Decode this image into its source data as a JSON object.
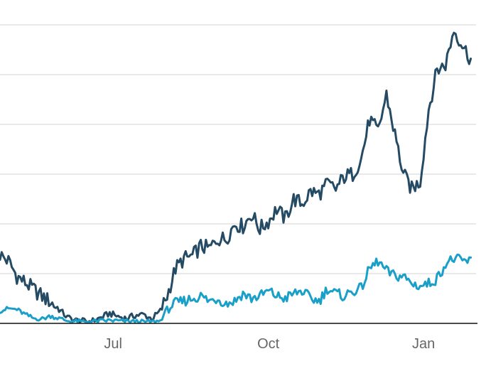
{
  "chart_data": {
    "type": "line",
    "x_axis": {
      "kind": "date",
      "range": [
        "2020-04-25",
        "2021-02-07"
      ],
      "ticks": [
        {
          "date": "2020-07-01",
          "label": "Jul"
        },
        {
          "date": "2020-10-01",
          "label": "Oct"
        },
        {
          "date": "2021-01-01",
          "label": "Jan"
        }
      ]
    },
    "y_axis": {
      "range": [
        0,
        60
      ],
      "gridlines": [
        10,
        20,
        30,
        40,
        50,
        60
      ],
      "tick_labels": []
    },
    "grid": true,
    "legend": "none",
    "series": [
      {
        "color": "#244b63",
        "points": [
          [
            "2020-04-25",
            13.8
          ],
          [
            "2020-04-30",
            12.5
          ],
          [
            "2020-05-05",
            9.5
          ],
          [
            "2020-05-10",
            8.2
          ],
          [
            "2020-05-15",
            6.8
          ],
          [
            "2020-05-20",
            5.4
          ],
          [
            "2020-05-25",
            4.3
          ],
          [
            "2020-05-30",
            2.8
          ],
          [
            "2020-06-04",
            1.2
          ],
          [
            "2020-06-09",
            0.6
          ],
          [
            "2020-06-14",
            0.4
          ],
          [
            "2020-06-19",
            0.5
          ],
          [
            "2020-06-24",
            1.2
          ],
          [
            "2020-06-29",
            2.0
          ],
          [
            "2020-07-04",
            1.4
          ],
          [
            "2020-07-09",
            1.0
          ],
          [
            "2020-07-14",
            1.6
          ],
          [
            "2020-07-19",
            1.8
          ],
          [
            "2020-07-24",
            0.9
          ],
          [
            "2020-07-29",
            2.5
          ],
          [
            "2020-08-02",
            5.5
          ],
          [
            "2020-08-07",
            11.0
          ],
          [
            "2020-08-12",
            13.0
          ],
          [
            "2020-08-17",
            13.5
          ],
          [
            "2020-08-22",
            15.5
          ],
          [
            "2020-08-27",
            15.0
          ],
          [
            "2020-09-01",
            17.0
          ],
          [
            "2020-09-06",
            17.0
          ],
          [
            "2020-09-11",
            20.0
          ],
          [
            "2020-09-16",
            19.5
          ],
          [
            "2020-09-21",
            22.0
          ],
          [
            "2020-09-26",
            19.0
          ],
          [
            "2020-10-01",
            20.5
          ],
          [
            "2020-10-06",
            23.0
          ],
          [
            "2020-10-11",
            21.0
          ],
          [
            "2020-10-16",
            25.0
          ],
          [
            "2020-10-21",
            24.0
          ],
          [
            "2020-10-26",
            26.5
          ],
          [
            "2020-10-31",
            26.0
          ],
          [
            "2020-11-05",
            28.0
          ],
          [
            "2020-11-10",
            27.0
          ],
          [
            "2020-11-15",
            29.5
          ],
          [
            "2020-11-20",
            30.0
          ],
          [
            "2020-11-25",
            33.0
          ],
          [
            "2020-11-30",
            41.0
          ],
          [
            "2020-12-05",
            38.5
          ],
          [
            "2020-12-10",
            46.0
          ],
          [
            "2020-12-15",
            38.0
          ],
          [
            "2020-12-20",
            30.0
          ],
          [
            "2020-12-25",
            27.0
          ],
          [
            "2020-12-30",
            28.5
          ],
          [
            "2021-01-04",
            43.0
          ],
          [
            "2021-01-09",
            51.0
          ],
          [
            "2021-01-14",
            52.0
          ],
          [
            "2021-01-19",
            59.0
          ],
          [
            "2021-01-24",
            56.0
          ],
          [
            "2021-01-29",
            53.0
          ]
        ]
      },
      {
        "color": "#1aa0c8",
        "points": [
          [
            "2020-04-25",
            2.5
          ],
          [
            "2020-04-30",
            3.0
          ],
          [
            "2020-05-05",
            2.8
          ],
          [
            "2020-05-10",
            1.8
          ],
          [
            "2020-05-15",
            1.0
          ],
          [
            "2020-05-20",
            0.9
          ],
          [
            "2020-05-25",
            1.5
          ],
          [
            "2020-05-30",
            1.0
          ],
          [
            "2020-06-04",
            0.5
          ],
          [
            "2020-06-09",
            0.4
          ],
          [
            "2020-06-14",
            0.3
          ],
          [
            "2020-06-19",
            0.4
          ],
          [
            "2020-06-24",
            0.5
          ],
          [
            "2020-06-29",
            0.6
          ],
          [
            "2020-07-04",
            0.5
          ],
          [
            "2020-07-09",
            0.4
          ],
          [
            "2020-07-14",
            0.4
          ],
          [
            "2020-07-19",
            0.3
          ],
          [
            "2020-07-24",
            0.3
          ],
          [
            "2020-07-29",
            0.5
          ],
          [
            "2020-08-02",
            3.0
          ],
          [
            "2020-08-07",
            4.0
          ],
          [
            "2020-08-12",
            4.5
          ],
          [
            "2020-08-17",
            5.0
          ],
          [
            "2020-08-22",
            5.5
          ],
          [
            "2020-08-27",
            4.5
          ],
          [
            "2020-09-01",
            5.0
          ],
          [
            "2020-09-06",
            4.0
          ],
          [
            "2020-09-11",
            4.5
          ],
          [
            "2020-09-16",
            6.0
          ],
          [
            "2020-09-21",
            5.0
          ],
          [
            "2020-09-26",
            5.5
          ],
          [
            "2020-10-01",
            6.5
          ],
          [
            "2020-10-06",
            5.5
          ],
          [
            "2020-10-11",
            5.0
          ],
          [
            "2020-10-16",
            6.0
          ],
          [
            "2020-10-21",
            6.5
          ],
          [
            "2020-10-26",
            5.0
          ],
          [
            "2020-10-31",
            4.5
          ],
          [
            "2020-11-05",
            7.0
          ],
          [
            "2020-11-10",
            6.0
          ],
          [
            "2020-11-15",
            5.5
          ],
          [
            "2020-11-20",
            6.5
          ],
          [
            "2020-11-25",
            7.0
          ],
          [
            "2020-11-30",
            11.0
          ],
          [
            "2020-12-05",
            12.5
          ],
          [
            "2020-12-10",
            10.5
          ],
          [
            "2020-12-15",
            9.5
          ],
          [
            "2020-12-20",
            9.5
          ],
          [
            "2020-12-25",
            8.0
          ],
          [
            "2020-12-30",
            7.5
          ],
          [
            "2021-01-04",
            8.0
          ],
          [
            "2021-01-09",
            9.0
          ],
          [
            "2021-01-14",
            12.0
          ],
          [
            "2021-01-19",
            13.0
          ],
          [
            "2021-01-24",
            12.5
          ],
          [
            "2021-01-29",
            12.5
          ]
        ]
      }
    ]
  }
}
